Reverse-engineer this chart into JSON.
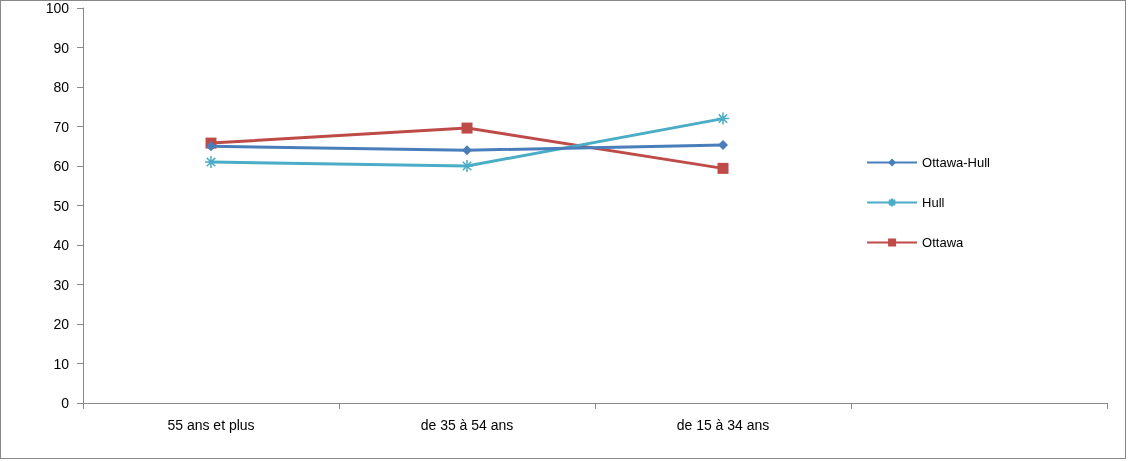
{
  "chart_data": {
    "type": "line",
    "categories": [
      "55 ans et plus",
      "de 35 à 54 ans",
      "de 15 à 34 ans",
      null
    ],
    "series": [
      {
        "name": "Ottawa-Hull",
        "color": "#4a7ebb",
        "marker": "diamond",
        "values": [
          65,
          64,
          65.3,
          null
        ]
      },
      {
        "name": "Hull",
        "color": "#4bacc6",
        "marker": "cross",
        "values": [
          61,
          60,
          72,
          null
        ]
      },
      {
        "name": "Ottawa",
        "color": "#be4b48",
        "marker": "square",
        "values": [
          65.8,
          69.6,
          59.4,
          null
        ]
      }
    ],
    "ylim": [
      0,
      100
    ],
    "yticks": [
      0,
      10,
      20,
      30,
      40,
      50,
      60,
      70,
      80,
      90,
      100
    ],
    "grid": false,
    "legend": "right"
  }
}
